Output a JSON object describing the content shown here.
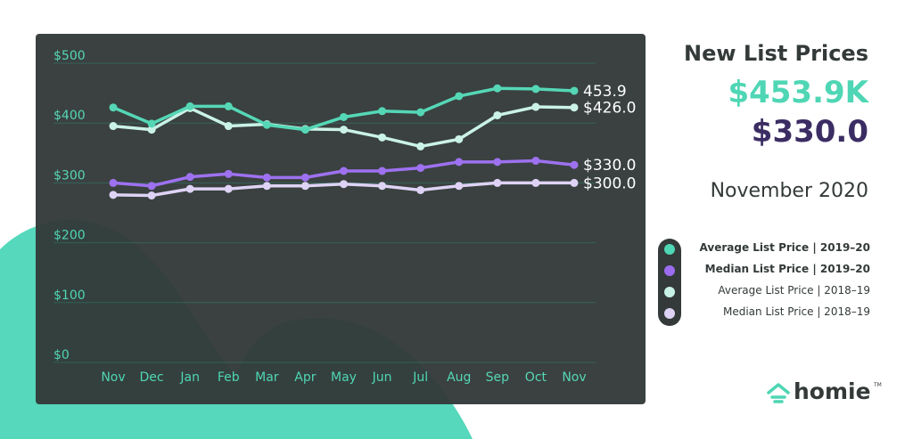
{
  "header": {
    "title": "New List Prices",
    "avg_value": "$453.9K",
    "median_value": "$330.0",
    "date": "November 2020"
  },
  "colors": {
    "avg_2019_20": "#4fd6b4",
    "median_2019_20": "#9b6cf0",
    "avg_2018_19": "#c9f2e6",
    "median_2018_19": "#ddd2f5",
    "panel": "#333a39",
    "grid": "#2f5c53",
    "tick": "#4fd6b4"
  },
  "legend": [
    {
      "label": "Average List Price  |  2019–20",
      "bold": true,
      "color_key": "avg_2019_20"
    },
    {
      "label": "Median List Price  |  2019–20",
      "bold": true,
      "color_key": "median_2019_20"
    },
    {
      "label": "Average List Price  |  2018–19",
      "bold": false,
      "color_key": "avg_2018_19"
    },
    {
      "label": "Median List Price  |  2018–19",
      "bold": false,
      "color_key": "median_2018_19"
    }
  ],
  "logo": {
    "text": "homie",
    "tm": "TM",
    "icon": "house-icon"
  },
  "chart_data": {
    "type": "line",
    "categories": [
      "Nov",
      "Dec",
      "Jan",
      "Feb",
      "Mar",
      "Apr",
      "May",
      "Jun",
      "Jul",
      "Aug",
      "Sep",
      "Oct",
      "Nov"
    ],
    "ylim": [
      0,
      500
    ],
    "yticks": [
      "$0",
      "$100",
      "$200",
      "$300",
      "$400",
      "$500"
    ],
    "grid": true,
    "series": [
      {
        "name": "Average List Price  |  2018–19",
        "color_key": "avg_2018_19",
        "values": [
          395,
          389,
          425,
          395,
          398,
          390,
          389,
          376,
          361,
          373,
          413,
          427,
          426
        ]
      },
      {
        "name": "Median List Price  |  2018–19",
        "color_key": "median_2018_19",
        "values": [
          280,
          279,
          290,
          290,
          295,
          295,
          298,
          295,
          288,
          295,
          300,
          300,
          300
        ]
      },
      {
        "name": "Average List Price  |  2019–20",
        "color_key": "avg_2019_20",
        "values": [
          426,
          399,
          428,
          428,
          397,
          389,
          410,
          420,
          418,
          445,
          458,
          457,
          453.9
        ]
      },
      {
        "name": "Median List Price  |  2019–20",
        "color_key": "median_2019_20",
        "values": [
          300,
          295,
          310,
          315,
          309,
          309,
          320,
          320,
          325,
          335,
          335,
          337,
          330
        ]
      }
    ],
    "end_labels": [
      {
        "text": "453.9",
        "series_index": 2
      },
      {
        "text": "$426.0",
        "series_index": 0
      },
      {
        "text": "$330.0",
        "series_index": 3
      },
      {
        "text": "$300.0",
        "series_index": 1
      }
    ]
  }
}
